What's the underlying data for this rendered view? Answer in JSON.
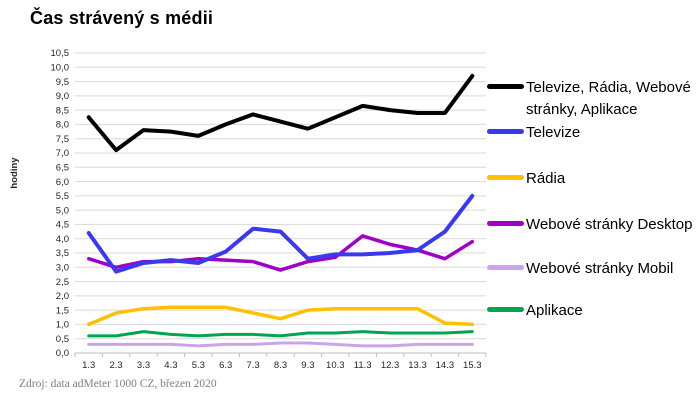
{
  "source": "Zdroj: data adMeter 1000 CZ, březen 2020",
  "chart_data": {
    "type": "line",
    "title": "Čas strávený s médii",
    "xlabel": "",
    "ylabel": "hodiny",
    "ylim": [
      0,
      10.5
    ],
    "ytick_step": 0.5,
    "grid": true,
    "legend_position": "right",
    "grid_color": "#d9d9d9",
    "axis_color": "#bfbfbf",
    "categories": [
      "1.3",
      "2.3",
      "3.3",
      "4.3",
      "5.3",
      "6.3",
      "7.3",
      "8.3",
      "9.3",
      "10.3",
      "11.3",
      "12.3",
      "13.3",
      "14.3",
      "15.3"
    ],
    "series": [
      {
        "name": "Televize, Rádia, Webové stránky, Aplikace",
        "color": "#000000",
        "width": 4,
        "values": [
          8.25,
          7.1,
          7.8,
          7.75,
          7.6,
          8.0,
          8.35,
          8.1,
          7.85,
          8.25,
          8.65,
          8.5,
          8.4,
          8.4,
          9.7
        ]
      },
      {
        "name": "Televize",
        "color": "#3a3aec",
        "width": 4,
        "values": [
          4.2,
          2.85,
          3.15,
          3.25,
          3.15,
          3.55,
          4.35,
          4.25,
          3.3,
          3.45,
          3.45,
          3.5,
          3.6,
          4.25,
          5.5
        ]
      },
      {
        "name": "Rádia",
        "color": "#ffc000",
        "width": 3.5,
        "values": [
          1.0,
          1.4,
          1.55,
          1.6,
          1.6,
          1.6,
          1.4,
          1.2,
          1.5,
          1.55,
          1.55,
          1.55,
          1.55,
          1.05,
          1.0
        ]
      },
      {
        "name": "Webové stránky Desktop",
        "color": "#9e00c8",
        "width": 3.5,
        "values": [
          3.3,
          3.0,
          3.2,
          3.2,
          3.3,
          3.25,
          3.2,
          2.9,
          3.2,
          3.35,
          4.1,
          3.8,
          3.6,
          3.3,
          3.9
        ]
      },
      {
        "name": "Webové stránky Mobil",
        "color": "#c9a3ec",
        "width": 3,
        "values": [
          0.3,
          0.3,
          0.3,
          0.3,
          0.25,
          0.3,
          0.3,
          0.35,
          0.35,
          0.3,
          0.25,
          0.25,
          0.3,
          0.3,
          0.3
        ]
      },
      {
        "name": "Aplikace",
        "color": "#00a551",
        "width": 3,
        "values": [
          0.6,
          0.6,
          0.75,
          0.65,
          0.6,
          0.65,
          0.65,
          0.6,
          0.7,
          0.7,
          0.75,
          0.7,
          0.7,
          0.7,
          0.75
        ]
      }
    ]
  }
}
